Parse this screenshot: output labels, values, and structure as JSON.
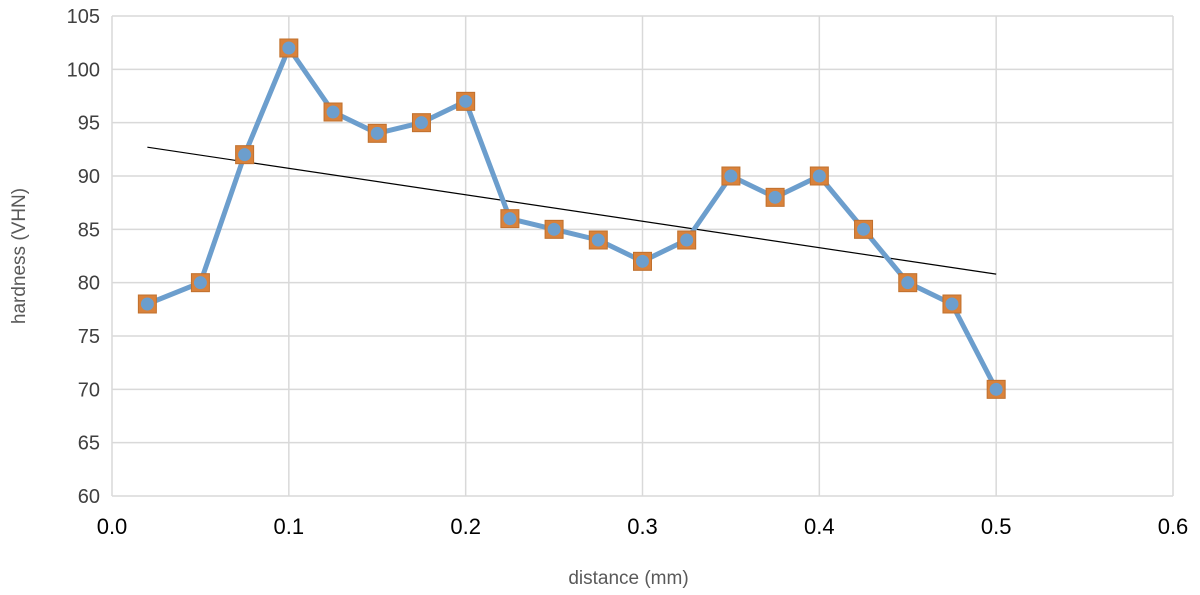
{
  "chart_data": {
    "type": "scatter",
    "title": "",
    "xlabel": "distance (mm)",
    "ylabel": "hardness (VHN)",
    "xlim": [
      0.0,
      0.6
    ],
    "ylim": [
      60,
      105
    ],
    "x_ticks": [
      "0.0",
      "0.1",
      "0.2",
      "0.3",
      "0.4",
      "0.5",
      "0.6"
    ],
    "y_ticks": [
      "60",
      "65",
      "70",
      "75",
      "80",
      "85",
      "90",
      "95",
      "100",
      "105"
    ],
    "grid": true,
    "legend": "none",
    "series": [
      {
        "color": "#6c9ecd",
        "marker_color": "#d9823b",
        "line": true,
        "x": [
          0.02,
          0.05,
          0.075,
          0.1,
          0.125,
          0.15,
          0.175,
          0.2,
          0.225,
          0.25,
          0.275,
          0.3,
          0.325,
          0.35,
          0.375,
          0.4,
          0.425,
          0.45,
          0.475,
          0.5
        ],
        "y": [
          78,
          80,
          92,
          102,
          96,
          94,
          95,
          97,
          86,
          85,
          84,
          82,
          84,
          90,
          88,
          90,
          85,
          80,
          78,
          70
        ]
      }
    ],
    "trendline": {
      "type": "linear",
      "color": "#000000",
      "x": [
        0.02,
        0.5
      ],
      "y": [
        92.7,
        80.8
      ]
    }
  }
}
